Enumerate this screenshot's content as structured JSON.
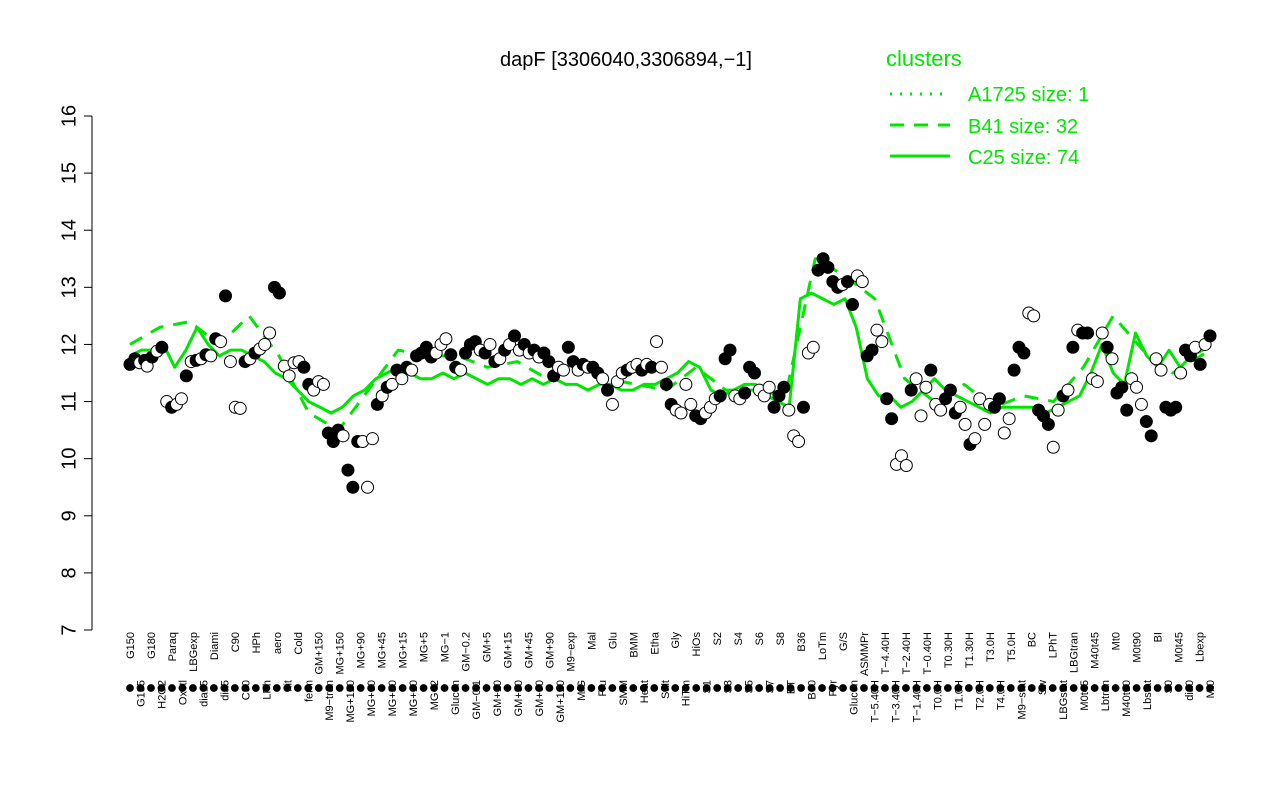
{
  "chart_data": {
    "type": "line",
    "title": "dapF [3306040,3306894,−1]",
    "xlabel": "",
    "ylabel": "",
    "ylim": [
      7,
      16
    ],
    "y_ticks": [
      7,
      8,
      9,
      10,
      11,
      12,
      13,
      14,
      15,
      16
    ],
    "grid": false,
    "x_tick_labels_top": [
      "G150",
      "G135",
      "G180",
      "H2O2",
      "Paraq",
      "Oxctl",
      "LBGexp",
      "dia15",
      "Diami",
      "dia5",
      "C90",
      "C30",
      "HPh",
      "LPh",
      "aero",
      "nit",
      "Cold",
      "ferm",
      "GM+150",
      "M9−tran",
      "MG+150",
      "MG+120",
      "MG+90",
      "MG+60",
      "MG+45",
      "MG+30",
      "MG+15",
      "MG+10",
      "MG+5",
      "MG−2",
      "MG−1",
      "Glucon",
      "GM−0.2",
      "GM−0.1",
      "GM+5",
      "GM+10",
      "GM+15",
      "GM+30",
      "GM+45",
      "GM+60",
      "GM+90",
      "GM+120",
      "M9−exp",
      "M/G",
      "Mal",
      "Fru",
      "Glu",
      "SMM",
      "BMM",
      "Heat",
      "Etha",
      "Salt",
      "Gly",
      "HiTm",
      "HiOs",
      "S1",
      "S2",
      "S3",
      "S4",
      "S5",
      "S6",
      "S7",
      "S8",
      "BT",
      "B36",
      "B60",
      "LoTm",
      "Pyr",
      "G/S",
      "Glucon",
      "ASMMPr",
      "T−5.40H",
      "T−4.40H",
      "T−3.40H",
      "T−2.40H",
      "T−1.40H",
      "T−0.40H",
      "T0.0H",
      "T0.30H",
      "T1.0H",
      "T1.30H",
      "T2.0H",
      "T3.0H",
      "T4.0H",
      "T5.0H",
      "M9−stat",
      "BC",
      "Sw",
      "LPhT",
      "LBGstat",
      "LBGtran",
      "M0t45",
      "M40t45",
      "Lbtran",
      "Mt0",
      "M40t90",
      "M0t90",
      "Lbstat",
      "BI",
      "S0",
      "M0t45",
      "dia0",
      "Lbexp",
      "Mt0"
    ],
    "legend": {
      "title": "clusters",
      "placement": "top-right",
      "entries": [
        {
          "label": "A1725 size: 1",
          "style": "dotted"
        },
        {
          "label": "B41 size: 32",
          "style": "dashed"
        },
        {
          "label": "C25 size: 74",
          "style": "solid"
        }
      ]
    },
    "color": "#00e600",
    "series": [
      {
        "name": "C25",
        "style": "solid",
        "x": [
          0,
          3,
          6,
          9,
          12,
          15,
          18,
          21,
          24,
          27,
          30,
          33,
          36,
          39,
          42,
          45,
          48,
          51,
          54,
          57,
          60,
          63,
          66,
          69,
          72,
          75,
          78,
          81,
          84,
          87,
          90,
          93,
          96,
          99,
          102,
          105,
          108,
          111,
          114,
          117,
          120,
          123,
          126,
          129,
          132,
          135,
          138,
          141,
          144,
          147,
          150,
          153,
          156,
          159,
          162,
          165,
          168,
          171,
          174,
          177,
          180,
          183,
          186,
          189,
          192,
          195,
          198,
          201,
          204,
          207,
          210,
          213,
          216,
          219,
          222,
          225,
          228,
          231,
          234,
          237,
          240,
          243,
          246,
          249,
          252,
          255,
          258,
          261,
          264,
          267,
          270,
          273,
          276,
          279,
          282,
          285,
          288,
          290
        ],
        "y": [
          11.8,
          11.9,
          11.9,
          12,
          11.6,
          11.9,
          12.3,
          12,
          11.8,
          11.9,
          11.9,
          11.8,
          11.7,
          11.5,
          11.4,
          11.2,
          11,
          10.9,
          10.8,
          10.9,
          11.1,
          11.2,
          11.4,
          11.5,
          11.6,
          11.5,
          11.4,
          11.4,
          11.5,
          11.4,
          11.5,
          11.4,
          11.3,
          11.4,
          11.4,
          11.3,
          11.4,
          11.3,
          11.4,
          11.3,
          11.3,
          11.2,
          11.3,
          11.3,
          11.2,
          11.2,
          11.3,
          11.3,
          11.4,
          11.5,
          11.7,
          11.6,
          11.2,
          11.1,
          11.2,
          11.3,
          11.3,
          11.1,
          11,
          10.9,
          12.8,
          12.9,
          12.8,
          12.7,
          12.8,
          12.3,
          11.4,
          11.1,
          11.1,
          10.9,
          11,
          11.2,
          11.4,
          11.2,
          11.1,
          11,
          10.9,
          10.8,
          10.9,
          10.9,
          10.9,
          10.9,
          10.8,
          10.9,
          11,
          11.1,
          11.5,
          12,
          11.5,
          11.3,
          12.2,
          11.8,
          11.6,
          11.9,
          11.6,
          11.8,
          11.9,
          12.0
        ]
      },
      {
        "name": "B41",
        "style": "dashed",
        "x": [
          0,
          8,
          16,
          24,
          32,
          40,
          48,
          56,
          64,
          72,
          80,
          88,
          96,
          104,
          112,
          120,
          128,
          136,
          144,
          152,
          160,
          168,
          176,
          184,
          192,
          200,
          208,
          216,
          224,
          232,
          240,
          248,
          256,
          264,
          272,
          280,
          290
        ],
        "y": [
          12,
          12.3,
          12.4,
          12,
          12.5,
          11.8,
          10.8,
          10.5,
          11.2,
          11.9,
          11.8,
          11.8,
          11.6,
          11.7,
          11.4,
          11.6,
          11.4,
          11.3,
          11.2,
          11.6,
          11.2,
          11.2,
          11.1,
          13.5,
          13.2,
          12.8,
          11.4,
          11.0,
          11.3,
          10.9,
          11.1,
          11.0,
          11.6,
          12.5,
          11.9,
          11.5,
          11.9
        ]
      },
      {
        "name": "A1725",
        "style": "dotted",
        "x": [
          0,
          290
        ],
        "y": [
          11.8,
          11.8
        ]
      }
    ],
    "points": [
      [
        0,
        11.65,
        "f"
      ],
      [
        2,
        11.75,
        "f"
      ],
      [
        4,
        11.68,
        "o"
      ],
      [
        6,
        11.72,
        "f"
      ],
      [
        7,
        11.62,
        "o"
      ],
      [
        9,
        11.78,
        "f"
      ],
      [
        11,
        11.88,
        "o"
      ],
      [
        13,
        11.95,
        "f"
      ],
      [
        15,
        11.0,
        "o"
      ],
      [
        17,
        10.9,
        "f"
      ],
      [
        19,
        10.95,
        "o"
      ],
      [
        21,
        11.05,
        "o"
      ],
      [
        23,
        11.45,
        "f"
      ],
      [
        25,
        11.7,
        "o"
      ],
      [
        27,
        11.72,
        "f"
      ],
      [
        29,
        11.75,
        "o"
      ],
      [
        31,
        11.82,
        "f"
      ],
      [
        33,
        11.8,
        "o"
      ],
      [
        35,
        12.1,
        "f"
      ],
      [
        37,
        12.05,
        "o"
      ],
      [
        39,
        12.85,
        "f"
      ],
      [
        41,
        11.7,
        "o"
      ],
      [
        43,
        10.9,
        "o"
      ],
      [
        45,
        10.88,
        "o"
      ],
      [
        47,
        11.7,
        "f"
      ],
      [
        49,
        11.75,
        "o"
      ],
      [
        51,
        11.85,
        "f"
      ],
      [
        53,
        11.92,
        "o"
      ],
      [
        55,
        12.0,
        "o"
      ],
      [
        57,
        12.2,
        "o"
      ],
      [
        59,
        13.0,
        "f"
      ],
      [
        61,
        12.9,
        "f"
      ],
      [
        63,
        11.62,
        "o"
      ],
      [
        65,
        11.45,
        "o"
      ],
      [
        67,
        11.68,
        "o"
      ],
      [
        69,
        11.7,
        "o"
      ],
      [
        71,
        11.6,
        "f"
      ],
      [
        73,
        11.3,
        "f"
      ],
      [
        75,
        11.2,
        "o"
      ],
      [
        77,
        11.35,
        "o"
      ],
      [
        79,
        11.3,
        "o"
      ],
      [
        81,
        10.45,
        "f"
      ],
      [
        83,
        10.3,
        "f"
      ],
      [
        85,
        10.5,
        "f"
      ],
      [
        87,
        10.4,
        "o"
      ],
      [
        89,
        9.8,
        "f"
      ],
      [
        91,
        9.5,
        "f"
      ],
      [
        93,
        10.3,
        "f"
      ],
      [
        95,
        10.3,
        "o"
      ],
      [
        97,
        9.5,
        "o"
      ],
      [
        99,
        10.35,
        "o"
      ],
      [
        101,
        10.95,
        "f"
      ],
      [
        103,
        11.1,
        "o"
      ],
      [
        105,
        11.25,
        "f"
      ],
      [
        107,
        11.3,
        "o"
      ],
      [
        109,
        11.55,
        "f"
      ],
      [
        111,
        11.4,
        "o"
      ],
      [
        113,
        11.6,
        "f"
      ],
      [
        115,
        11.55,
        "o"
      ],
      [
        117,
        11.8,
        "f"
      ],
      [
        119,
        11.85,
        "f"
      ],
      [
        121,
        11.95,
        "f"
      ],
      [
        123,
        11.78,
        "f"
      ],
      [
        125,
        11.85,
        "o"
      ],
      [
        127,
        12.0,
        "o"
      ],
      [
        129,
        12.1,
        "o"
      ],
      [
        131,
        11.82,
        "f"
      ],
      [
        133,
        11.6,
        "f"
      ],
      [
        135,
        11.55,
        "o"
      ],
      [
        137,
        11.85,
        "f"
      ],
      [
        139,
        12.0,
        "f"
      ],
      [
        141,
        12.05,
        "f"
      ],
      [
        143,
        11.9,
        "o"
      ],
      [
        145,
        11.85,
        "f"
      ],
      [
        147,
        12.0,
        "o"
      ],
      [
        149,
        11.7,
        "f"
      ],
      [
        151,
        11.75,
        "o"
      ],
      [
        153,
        11.9,
        "f"
      ],
      [
        155,
        12.0,
        "o"
      ],
      [
        157,
        12.15,
        "f"
      ],
      [
        159,
        11.9,
        "o"
      ],
      [
        161,
        12.0,
        "f"
      ],
      [
        163,
        11.85,
        "o"
      ],
      [
        165,
        11.9,
        "f"
      ],
      [
        167,
        11.78,
        "o"
      ],
      [
        169,
        11.85,
        "f"
      ],
      [
        171,
        11.7,
        "f"
      ],
      [
        173,
        11.45,
        "f"
      ],
      [
        175,
        11.6,
        "o"
      ],
      [
        177,
        11.55,
        "o"
      ],
      [
        179,
        11.95,
        "f"
      ],
      [
        181,
        11.7,
        "f"
      ],
      [
        183,
        11.55,
        "o"
      ],
      [
        185,
        11.65,
        "f"
      ],
      [
        187,
        11.6,
        "o"
      ],
      [
        189,
        11.6,
        "f"
      ],
      [
        191,
        11.5,
        "f"
      ],
      [
        193,
        11.4,
        "o"
      ],
      [
        195,
        11.2,
        "f"
      ],
      [
        197,
        10.95,
        "o"
      ],
      [
        199,
        11.35,
        "o"
      ],
      [
        201,
        11.5,
        "o"
      ],
      [
        203,
        11.55,
        "f"
      ],
      [
        205,
        11.6,
        "o"
      ],
      [
        207,
        11.65,
        "o"
      ],
      [
        209,
        11.55,
        "f"
      ],
      [
        211,
        11.65,
        "o"
      ],
      [
        213,
        11.6,
        "f"
      ],
      [
        215,
        12.05,
        "o"
      ],
      [
        217,
        11.6,
        "o"
      ],
      [
        219,
        11.3,
        "f"
      ],
      [
        221,
        10.95,
        "f"
      ],
      [
        223,
        10.85,
        "o"
      ],
      [
        225,
        10.8,
        "o"
      ],
      [
        227,
        11.3,
        "o"
      ],
      [
        229,
        10.95,
        "o"
      ],
      [
        231,
        10.75,
        "f"
      ],
      [
        233,
        10.7,
        "f"
      ],
      [
        235,
        10.8,
        "o"
      ],
      [
        237,
        10.9,
        "o"
      ],
      [
        239,
        11.05,
        "o"
      ],
      [
        241,
        11.1,
        "f"
      ],
      [
        243,
        11.75,
        "f"
      ],
      [
        245,
        11.9,
        "f"
      ],
      [
        247,
        11.1,
        "o"
      ],
      [
        249,
        11.05,
        "o"
      ],
      [
        251,
        11.15,
        "f"
      ],
      [
        253,
        11.6,
        "f"
      ],
      [
        255,
        11.5,
        "f"
      ],
      [
        257,
        11.2,
        "o"
      ],
      [
        259,
        11.1,
        "o"
      ],
      [
        261,
        11.25,
        "o"
      ],
      [
        263,
        10.9,
        "f"
      ],
      [
        265,
        11.1,
        "f"
      ],
      [
        267,
        11.25,
        "f"
      ],
      [
        269,
        10.85,
        "o"
      ],
      [
        271,
        10.4,
        "o"
      ],
      [
        273,
        10.3,
        "o"
      ],
      [
        275,
        10.9,
        "f"
      ],
      [
        277,
        11.85,
        "o"
      ],
      [
        279,
        11.95,
        "o"
      ],
      [
        281,
        13.3,
        "f"
      ],
      [
        283,
        13.5,
        "f"
      ],
      [
        285,
        13.35,
        "f"
      ],
      [
        287,
        13.1,
        "f"
      ],
      [
        289,
        13.0,
        "f"
      ],
      [
        291,
        13.05,
        "o"
      ],
      [
        293,
        13.1,
        "f"
      ],
      [
        295,
        12.7,
        "f"
      ],
      [
        297,
        13.2,
        "o"
      ],
      [
        299,
        13.1,
        "o"
      ],
      [
        301,
        11.8,
        "f"
      ],
      [
        303,
        11.9,
        "f"
      ],
      [
        305,
        12.25,
        "o"
      ],
      [
        307,
        12.05,
        "o"
      ],
      [
        309,
        11.05,
        "f"
      ],
      [
        311,
        10.7,
        "f"
      ],
      [
        313,
        9.9,
        "o"
      ],
      [
        315,
        10.05,
        "o"
      ],
      [
        317,
        9.88,
        "o"
      ],
      [
        319,
        11.2,
        "f"
      ],
      [
        321,
        11.4,
        "o"
      ],
      [
        323,
        10.75,
        "o"
      ],
      [
        325,
        11.25,
        "o"
      ],
      [
        327,
        11.55,
        "f"
      ],
      [
        329,
        10.95,
        "o"
      ],
      [
        331,
        10.85,
        "o"
      ],
      [
        333,
        11.05,
        "f"
      ],
      [
        335,
        11.2,
        "f"
      ],
      [
        337,
        10.8,
        "f"
      ],
      [
        339,
        10.9,
        "o"
      ],
      [
        341,
        10.6,
        "o"
      ],
      [
        343,
        10.25,
        "f"
      ],
      [
        345,
        10.35,
        "o"
      ],
      [
        347,
        11.05,
        "o"
      ],
      [
        349,
        10.6,
        "o"
      ],
      [
        351,
        10.95,
        "o"
      ],
      [
        353,
        10.9,
        "f"
      ],
      [
        355,
        11.05,
        "f"
      ],
      [
        357,
        10.45,
        "o"
      ],
      [
        359,
        10.7,
        "o"
      ],
      [
        361,
        11.55,
        "f"
      ],
      [
        363,
        11.95,
        "f"
      ],
      [
        365,
        11.85,
        "f"
      ],
      [
        367,
        12.55,
        "o"
      ],
      [
        369,
        12.5,
        "o"
      ],
      [
        371,
        10.85,
        "f"
      ],
      [
        373,
        10.75,
        "f"
      ],
      [
        375,
        10.6,
        "f"
      ],
      [
        377,
        10.2,
        "o"
      ],
      [
        379,
        10.85,
        "o"
      ],
      [
        381,
        11.1,
        "f"
      ],
      [
        383,
        11.2,
        "o"
      ],
      [
        385,
        11.95,
        "f"
      ],
      [
        387,
        12.25,
        "o"
      ],
      [
        389,
        12.2,
        "f"
      ],
      [
        391,
        12.2,
        "f"
      ],
      [
        393,
        11.4,
        "o"
      ],
      [
        395,
        11.35,
        "o"
      ],
      [
        397,
        12.2,
        "o"
      ],
      [
        399,
        11.95,
        "f"
      ],
      [
        401,
        11.75,
        "o"
      ],
      [
        403,
        11.15,
        "f"
      ],
      [
        405,
        11.25,
        "f"
      ],
      [
        407,
        10.85,
        "f"
      ],
      [
        409,
        11.4,
        "o"
      ],
      [
        411,
        11.25,
        "o"
      ],
      [
        413,
        10.95,
        "o"
      ],
      [
        415,
        10.65,
        "f"
      ],
      [
        417,
        10.4,
        "f"
      ],
      [
        419,
        11.75,
        "o"
      ],
      [
        421,
        11.55,
        "o"
      ],
      [
        423,
        10.9,
        "f"
      ],
      [
        425,
        10.85,
        "f"
      ],
      [
        427,
        10.9,
        "f"
      ],
      [
        429,
        11.5,
        "o"
      ],
      [
        431,
        11.9,
        "f"
      ],
      [
        433,
        11.8,
        "f"
      ],
      [
        435,
        11.95,
        "o"
      ],
      [
        437,
        11.65,
        "f"
      ],
      [
        439,
        12.0,
        "o"
      ],
      [
        441,
        12.15,
        "f"
      ]
    ]
  }
}
